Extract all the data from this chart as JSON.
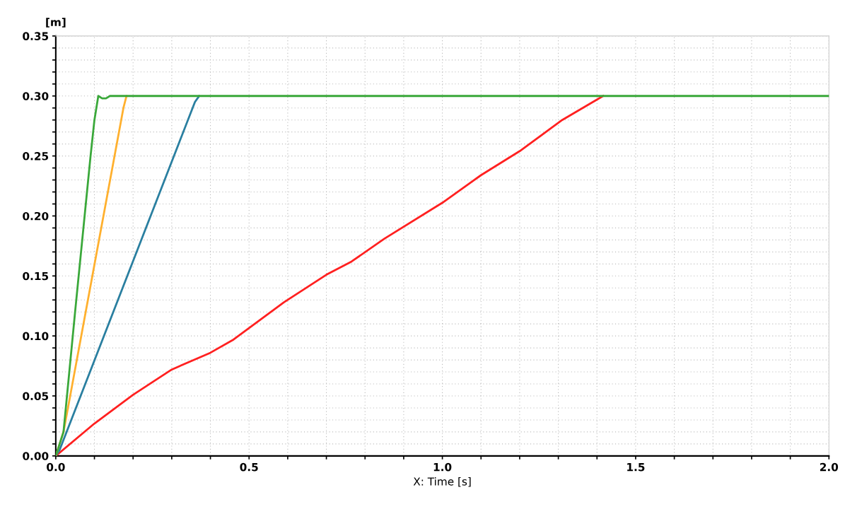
{
  "chart_data": {
    "type": "line",
    "ylabel": "[m]",
    "xlabel": "X: Time [s]",
    "xlim": [
      0,
      2.0
    ],
    "ylim": [
      0,
      0.35
    ],
    "xticks": [
      {
        "value": 0,
        "label": "0.0"
      },
      {
        "value": 0.1,
        "label": null
      },
      {
        "value": 0.2,
        "label": null
      },
      {
        "value": 0.3,
        "label": null
      },
      {
        "value": 0.4,
        "label": null
      },
      {
        "value": 0.5,
        "label": "0.5"
      },
      {
        "value": 0.6,
        "label": null
      },
      {
        "value": 0.7,
        "label": null
      },
      {
        "value": 0.8,
        "label": null
      },
      {
        "value": 0.9,
        "label": null
      },
      {
        "value": 1.0,
        "label": "1.0"
      },
      {
        "value": 1.1,
        "label": null
      },
      {
        "value": 1.2,
        "label": null
      },
      {
        "value": 1.3,
        "label": null
      },
      {
        "value": 1.4,
        "label": null
      },
      {
        "value": 1.5,
        "label": "1.5"
      },
      {
        "value": 1.6,
        "label": null
      },
      {
        "value": 1.7,
        "label": null
      },
      {
        "value": 1.8,
        "label": null
      },
      {
        "value": 1.9,
        "label": null
      },
      {
        "value": 2.0,
        "label": "2.0"
      }
    ],
    "yticks": [
      {
        "value": 0,
        "label": "0.00"
      },
      {
        "value": 0.01,
        "label": null
      },
      {
        "value": 0.02,
        "label": null
      },
      {
        "value": 0.03,
        "label": null
      },
      {
        "value": 0.04,
        "label": null
      },
      {
        "value": 0.05,
        "label": "0.05"
      },
      {
        "value": 0.06,
        "label": null
      },
      {
        "value": 0.07,
        "label": null
      },
      {
        "value": 0.08,
        "label": null
      },
      {
        "value": 0.09,
        "label": null
      },
      {
        "value": 0.1,
        "label": "0.10"
      },
      {
        "value": 0.11,
        "label": null
      },
      {
        "value": 0.12,
        "label": null
      },
      {
        "value": 0.13,
        "label": null
      },
      {
        "value": 0.14,
        "label": null
      },
      {
        "value": 0.15,
        "label": "0.15"
      },
      {
        "value": 0.16,
        "label": null
      },
      {
        "value": 0.17,
        "label": null
      },
      {
        "value": 0.18,
        "label": null
      },
      {
        "value": 0.19,
        "label": null
      },
      {
        "value": 0.2,
        "label": "0.20"
      },
      {
        "value": 0.21,
        "label": null
      },
      {
        "value": 0.22,
        "label": null
      },
      {
        "value": 0.23,
        "label": null
      },
      {
        "value": 0.24,
        "label": null
      },
      {
        "value": 0.25,
        "label": "0.25"
      },
      {
        "value": 0.26,
        "label": null
      },
      {
        "value": 0.27,
        "label": null
      },
      {
        "value": 0.28,
        "label": null
      },
      {
        "value": 0.29,
        "label": null
      },
      {
        "value": 0.3,
        "label": "0.30"
      },
      {
        "value": 0.31,
        "label": null
      },
      {
        "value": 0.32,
        "label": null
      },
      {
        "value": 0.33,
        "label": null
      },
      {
        "value": 0.34,
        "label": null
      },
      {
        "value": 0.35,
        "label": "0.35"
      }
    ],
    "grid": true,
    "legend": false,
    "series": [
      {
        "color": "#ff2020",
        "x": [
          0,
          0.1,
          0.2,
          0.3,
          0.4,
          0.46,
          0.59,
          0.7,
          0.765,
          0.85,
          1.0,
          1.1,
          1.2,
          1.31,
          1.416
        ],
        "values": [
          0,
          0.027,
          0.051,
          0.072,
          0.086,
          0.097,
          0.128,
          0.151,
          0.162,
          0.181,
          0.211,
          0.234,
          0.254,
          0.28,
          0.3
        ]
      },
      {
        "color": "#2a7fa0",
        "x": [
          0,
          0.01,
          0.36,
          0.371
        ],
        "values": [
          0,
          0.005,
          0.295,
          0.3
        ]
      },
      {
        "color": "#ffb02e",
        "x": [
          0,
          0.02,
          0.175,
          0.183
        ],
        "values": [
          0,
          0.02,
          0.29,
          0.3
        ]
      },
      {
        "color": "#3aa83a",
        "x": [
          0,
          0.02,
          0.05,
          0.09,
          0.1,
          0.11,
          0.12,
          0.13,
          0.14,
          2.0
        ],
        "values": [
          0,
          0.02,
          0.12,
          0.25,
          0.28,
          0.3,
          0.298,
          0.298,
          0.3,
          0.3
        ]
      }
    ]
  }
}
